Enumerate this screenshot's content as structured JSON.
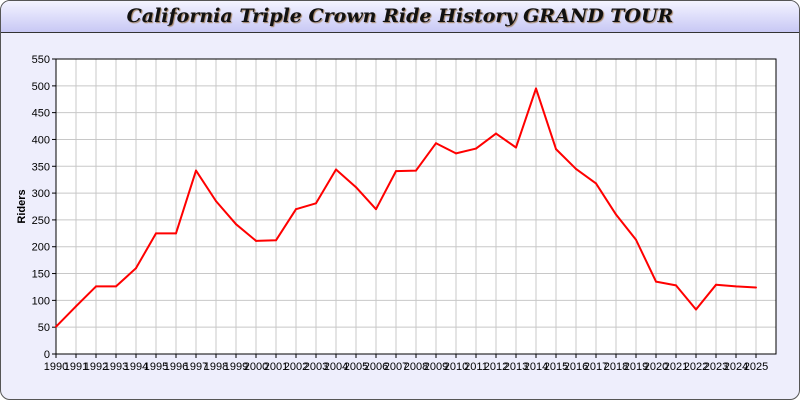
{
  "chart_data": {
    "type": "line",
    "title": "California Triple Crown Ride History GRAND TOUR",
    "xlabel": "",
    "ylabel": "Riders",
    "ylim": [
      0,
      550
    ],
    "yticks": [
      0,
      50,
      100,
      150,
      200,
      250,
      300,
      350,
      400,
      450,
      500,
      550
    ],
    "grid": true,
    "line_color": "#ff0000",
    "categories": [
      "1990",
      "1991",
      "1992",
      "1993",
      "1994",
      "1995",
      "1996",
      "1997",
      "1998",
      "1999",
      "2000",
      "2001",
      "2002",
      "2003",
      "2004",
      "2005",
      "2006",
      "2007",
      "2008",
      "2009",
      "2010",
      "2011",
      "2012",
      "2013",
      "2014",
      "2015",
      "2016",
      "2017",
      "2018",
      "2019",
      "2020",
      "2021",
      "2022",
      "2023",
      "2024",
      "2025"
    ],
    "values": [
      51,
      89,
      126,
      126,
      160,
      225,
      225,
      342,
      285,
      242,
      211,
      212,
      270,
      281,
      344,
      311,
      270,
      341,
      342,
      393,
      374,
      383,
      411,
      385,
      495,
      382,
      345,
      318,
      260,
      213,
      135,
      128,
      83,
      129,
      126,
      124
    ]
  }
}
